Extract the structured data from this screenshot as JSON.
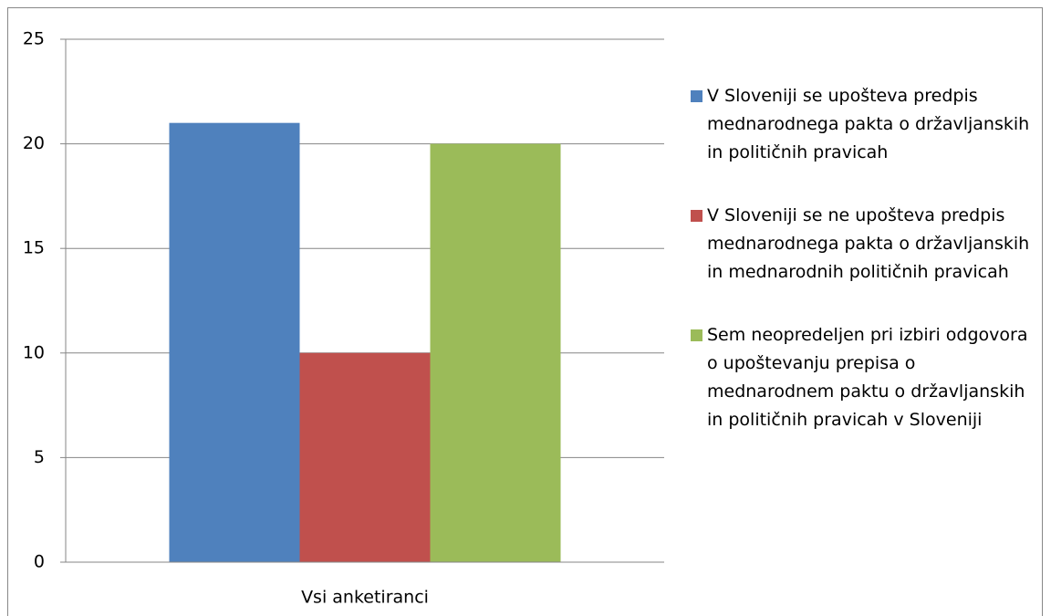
{
  "chart_data": {
    "type": "bar",
    "categories": [
      "Vsi anketiranci"
    ],
    "series": [
      {
        "name": "V Sloveniji se upošteva predpis mednarodnega pakta o državljanskih in političnih pravicah",
        "color": "#4f81bd",
        "values": [
          21
        ]
      },
      {
        "name": "V Sloveniji se ne upošteva predpis mednarodnega pakta o državljanskih in mednarodnih političnih pravicah",
        "color": "#c0504d",
        "values": [
          10
        ]
      },
      {
        "name": "Sem neopredeljen pri izbiri odgovora o upoštevanju prepisa o mednarodnem paktu o državljanskih in političnih pravicah v Sloveniji",
        "color": "#9bbb59",
        "values": [
          20
        ]
      }
    ],
    "ylim": [
      0,
      25
    ],
    "yticks": [
      0,
      5,
      10,
      15,
      20,
      25
    ],
    "grid": true,
    "legend": "right"
  }
}
